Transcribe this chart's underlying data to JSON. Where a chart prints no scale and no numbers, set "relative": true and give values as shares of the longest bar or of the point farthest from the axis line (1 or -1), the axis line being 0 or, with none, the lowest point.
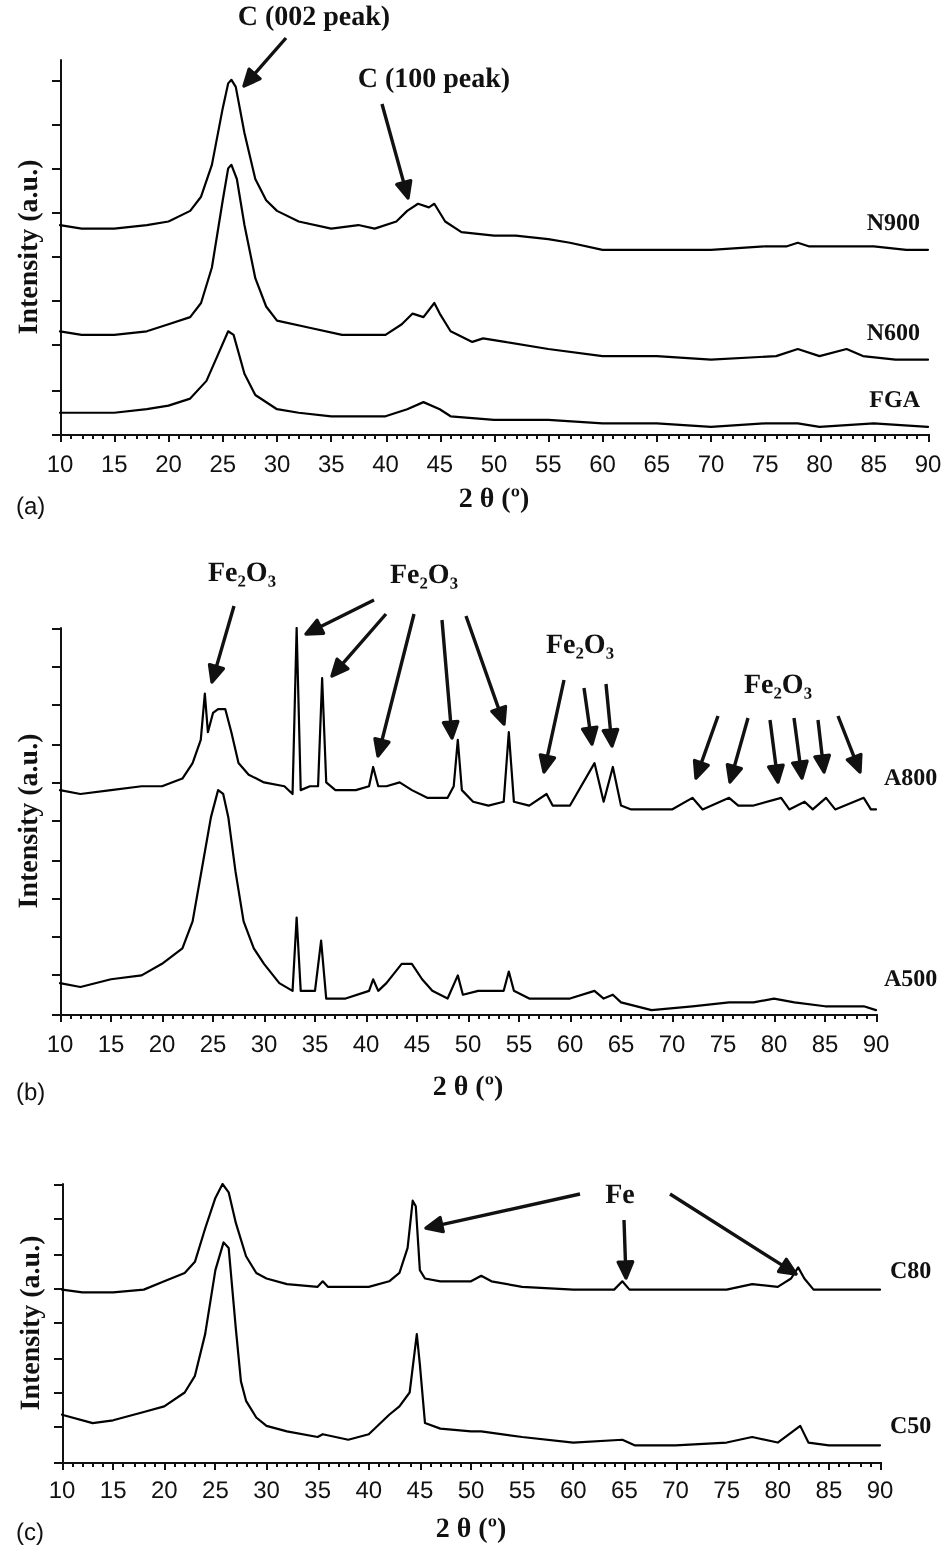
{
  "chart_data": [
    {
      "type": "line",
      "title": "(a)",
      "xlabel": "2 θ (º)",
      "ylabel": "Intensity (a.u.)",
      "relative": true,
      "xlim": [
        10,
        90
      ],
      "xticks": [
        10,
        15,
        20,
        25,
        30,
        35,
        40,
        45,
        50,
        55,
        60,
        65,
        70,
        75,
        80,
        85,
        90
      ],
      "marker": "none",
      "annotations": [
        "C (002 peak)",
        "C (100 peak)"
      ],
      "series": [
        {
          "name": "N900",
          "color": "#000000",
          "x": [
            10,
            12,
            15,
            18,
            20,
            22,
            23,
            24,
            25,
            25.5,
            25.8,
            26.2,
            27,
            28,
            29,
            30,
            32,
            35,
            37.5,
            39,
            41,
            42,
            43,
            44,
            44.5,
            45.5,
            47,
            50,
            52,
            55,
            57,
            60,
            65,
            70,
            75,
            77,
            78,
            79,
            82,
            85,
            88,
            90
          ],
          "values": [
            0.59,
            0.58,
            0.58,
            0.59,
            0.6,
            0.63,
            0.67,
            0.76,
            0.92,
            0.99,
            1,
            0.98,
            0.85,
            0.72,
            0.66,
            0.63,
            0.6,
            0.58,
            0.59,
            0.58,
            0.6,
            0.63,
            0.65,
            0.64,
            0.65,
            0.6,
            0.57,
            0.56,
            0.56,
            0.55,
            0.54,
            0.52,
            0.52,
            0.52,
            0.53,
            0.53,
            0.54,
            0.53,
            0.53,
            0.53,
            0.52,
            0.52
          ]
        },
        {
          "name": "N600",
          "color": "#000000",
          "x": [
            10,
            12,
            15,
            18,
            20,
            22,
            23,
            24,
            25,
            25.5,
            25.8,
            26.3,
            27,
            28,
            29,
            30,
            33,
            36,
            40,
            41.5,
            42.5,
            43.5,
            44.5,
            45,
            46,
            48,
            49,
            51,
            55,
            60,
            65,
            70,
            76,
            78,
            80,
            82.5,
            84,
            87,
            90
          ],
          "values": [
            0.29,
            0.28,
            0.28,
            0.29,
            0.31,
            0.33,
            0.37,
            0.47,
            0.66,
            0.75,
            0.76,
            0.72,
            0.59,
            0.44,
            0.36,
            0.32,
            0.3,
            0.28,
            0.28,
            0.31,
            0.34,
            0.33,
            0.37,
            0.34,
            0.29,
            0.26,
            0.27,
            0.26,
            0.24,
            0.22,
            0.22,
            0.21,
            0.22,
            0.24,
            0.22,
            0.24,
            0.22,
            0.21,
            0.21
          ]
        },
        {
          "name": "FGA",
          "color": "#000000",
          "x": [
            10,
            12,
            15,
            18,
            20,
            22,
            23.5,
            24.5,
            25.5,
            26,
            27,
            28,
            30,
            32,
            35,
            40,
            42,
            43.5,
            45,
            46,
            50,
            55,
            60,
            65,
            70,
            75,
            78,
            80,
            85,
            90
          ],
          "values": [
            0.06,
            0.06,
            0.06,
            0.07,
            0.08,
            0.1,
            0.15,
            0.22,
            0.29,
            0.28,
            0.17,
            0.11,
            0.07,
            0.06,
            0.05,
            0.05,
            0.07,
            0.09,
            0.07,
            0.05,
            0.04,
            0.04,
            0.03,
            0.03,
            0.02,
            0.03,
            0.03,
            0.02,
            0.03,
            0.02
          ]
        }
      ]
    },
    {
      "type": "line",
      "title": "(b)",
      "xlabel": "2 θ (º)",
      "ylabel": "Intensity (a.u.)",
      "relative": true,
      "xlim": [
        10,
        90
      ],
      "xticks": [
        10,
        15,
        20,
        25,
        30,
        35,
        40,
        45,
        50,
        55,
        60,
        65,
        70,
        75,
        80,
        85,
        90
      ],
      "marker": "none",
      "annotations": [
        "Fe₂O₃",
        "Fe₂O₃",
        "Fe₂O₃",
        "Fe₂O₃"
      ],
      "series": [
        {
          "name": "A800",
          "color": "#000000",
          "x": [
            10,
            12,
            15,
            18,
            20,
            22,
            23,
            23.8,
            24.2,
            24.5,
            25,
            25.5,
            26.2,
            26.8,
            27.5,
            28.5,
            30,
            32,
            32.8,
            33.2,
            33.6,
            34.5,
            35.3,
            35.7,
            36.1,
            37,
            39,
            40.3,
            40.7,
            41.2,
            42,
            43.3,
            44.5,
            46,
            48,
            48.6,
            49,
            49.4,
            50.5,
            52,
            53.5,
            54,
            54.5,
            56,
            57.7,
            58.3,
            60,
            62.4,
            63.3,
            64.2,
            65,
            66,
            70,
            72,
            73,
            75.6,
            76.5,
            78,
            80.7,
            81.5,
            83,
            83.8,
            85.1,
            86,
            88.8,
            89.5,
            90
          ],
          "values": [
            0.58,
            0.57,
            0.58,
            0.59,
            0.59,
            0.61,
            0.65,
            0.71,
            0.83,
            0.73,
            0.78,
            0.79,
            0.79,
            0.73,
            0.65,
            0.62,
            0.6,
            0.59,
            0.57,
            1,
            0.58,
            0.59,
            0.59,
            0.87,
            0.6,
            0.58,
            0.58,
            0.59,
            0.64,
            0.59,
            0.59,
            0.6,
            0.58,
            0.56,
            0.56,
            0.59,
            0.71,
            0.58,
            0.55,
            0.54,
            0.55,
            0.73,
            0.55,
            0.54,
            0.57,
            0.54,
            0.54,
            0.65,
            0.55,
            0.64,
            0.54,
            0.53,
            0.53,
            0.56,
            0.53,
            0.56,
            0.54,
            0.54,
            0.56,
            0.53,
            0.55,
            0.53,
            0.56,
            0.53,
            0.56,
            0.53,
            0.53
          ]
        },
        {
          "name": "A500",
          "color": "#000000",
          "x": [
            10,
            12,
            15,
            18,
            20,
            22,
            23,
            24,
            24.8,
            25.5,
            26,
            26.5,
            27.2,
            28,
            29,
            30,
            31.5,
            32.8,
            33.2,
            33.6,
            35,
            35.6,
            36.1,
            38,
            40.3,
            40.7,
            41.2,
            42,
            43.5,
            44.5,
            45.5,
            46.5,
            48,
            49,
            49.5,
            51,
            53.5,
            54,
            54.5,
            56,
            60,
            62.4,
            63.3,
            64.2,
            65,
            68,
            72,
            75.6,
            78,
            80,
            82,
            85,
            88.8,
            90
          ],
          "values": [
            0.08,
            0.07,
            0.09,
            0.1,
            0.13,
            0.17,
            0.24,
            0.39,
            0.51,
            0.58,
            0.57,
            0.51,
            0.37,
            0.24,
            0.17,
            0.13,
            0.08,
            0.06,
            0.25,
            0.06,
            0.06,
            0.19,
            0.04,
            0.04,
            0.06,
            0.09,
            0.06,
            0.08,
            0.13,
            0.13,
            0.09,
            0.06,
            0.04,
            0.1,
            0.05,
            0.06,
            0.06,
            0.11,
            0.06,
            0.04,
            0.04,
            0.06,
            0.04,
            0.05,
            0.03,
            0.01,
            0.02,
            0.03,
            0.03,
            0.04,
            0.03,
            0.02,
            0.02,
            0.01
          ]
        }
      ]
    },
    {
      "type": "line",
      "title": "(c)",
      "xlabel": "2 θ (º)",
      "ylabel": "Intensity (a.u.)",
      "relative": true,
      "xlim": [
        10,
        90
      ],
      "xticks": [
        10,
        15,
        20,
        25,
        30,
        35,
        40,
        45,
        50,
        55,
        60,
        65,
        70,
        75,
        80,
        85,
        90
      ],
      "marker": "none",
      "annotations": [
        "Fe"
      ],
      "series": [
        {
          "name": "C80",
          "color": "#000000",
          "x": [
            10,
            12,
            15,
            18,
            20,
            22,
            23,
            24,
            25,
            25.7,
            26.3,
            27,
            28,
            29,
            30,
            32,
            35,
            35.5,
            36,
            38,
            40,
            42,
            43,
            43.8,
            44.3,
            44.6,
            45,
            45.5,
            47,
            50,
            51,
            52,
            55,
            60,
            64,
            64.8,
            65.5,
            70,
            75,
            77.5,
            80,
            81.3,
            82,
            82.6,
            83.5,
            85,
            90
          ],
          "values": [
            0.62,
            0.61,
            0.61,
            0.62,
            0.65,
            0.68,
            0.72,
            0.84,
            0.95,
            1,
            0.97,
            0.86,
            0.74,
            0.68,
            0.66,
            0.64,
            0.63,
            0.65,
            0.63,
            0.63,
            0.63,
            0.65,
            0.68,
            0.77,
            0.94,
            0.92,
            0.69,
            0.66,
            0.65,
            0.65,
            0.67,
            0.65,
            0.63,
            0.62,
            0.62,
            0.65,
            0.62,
            0.62,
            0.62,
            0.64,
            0.63,
            0.66,
            0.7,
            0.66,
            0.62,
            0.62,
            0.62
          ]
        },
        {
          "name": "C50",
          "color": "#000000",
          "x": [
            10,
            13,
            15,
            18,
            20,
            22,
            23,
            24,
            25,
            25.8,
            26.3,
            27,
            27.5,
            28,
            29,
            30,
            32,
            35,
            35.5,
            38,
            40,
            42,
            43,
            44,
            44.7,
            45,
            45.5,
            47,
            50,
            51,
            55,
            60,
            64.8,
            66,
            70,
            75,
            77.5,
            80,
            82.2,
            83,
            85,
            90
          ],
          "values": [
            0.17,
            0.14,
            0.15,
            0.18,
            0.2,
            0.25,
            0.31,
            0.46,
            0.69,
            0.79,
            0.77,
            0.48,
            0.29,
            0.22,
            0.16,
            0.13,
            0.11,
            0.09,
            0.1,
            0.08,
            0.1,
            0.17,
            0.2,
            0.25,
            0.46,
            0.35,
            0.14,
            0.12,
            0.11,
            0.11,
            0.09,
            0.07,
            0.08,
            0.06,
            0.06,
            0.07,
            0.09,
            0.07,
            0.13,
            0.07,
            0.06,
            0.06
          ]
        }
      ]
    }
  ]
}
